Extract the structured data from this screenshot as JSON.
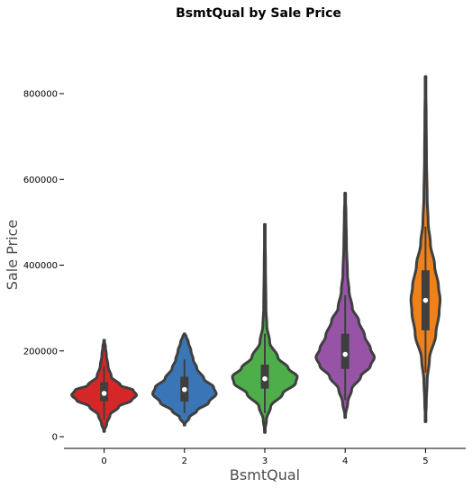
{
  "chart_data": {
    "type": "violin",
    "title": "BsmtQual by Sale Price",
    "xlabel": "BsmtQual",
    "ylabel": "Sale Price",
    "categories": [
      "0",
      "2",
      "3",
      "4",
      "5"
    ],
    "ylim": [
      -30000,
      880000
    ],
    "yticks": [
      0,
      200000,
      400000,
      600000,
      800000
    ],
    "ytick_labels": [
      "0",
      "200000",
      "400000",
      "600000",
      "800000"
    ],
    "grid": false,
    "colors": [
      "#d62728",
      "#3a76b5",
      "#4eaf4a",
      "#9753a6",
      "#f0811a"
    ],
    "series": [
      {
        "category": "0",
        "min": 12000,
        "max": 225000,
        "q1": 83000,
        "median": 101000,
        "q3": 127000,
        "whisker_low": 40000,
        "whisker_high": 165000,
        "profile": [
          [
            12000,
            0
          ],
          [
            30000,
            0.08
          ],
          [
            50000,
            0.18
          ],
          [
            70000,
            0.45
          ],
          [
            85000,
            0.85
          ],
          [
            97000,
            1.0
          ],
          [
            108000,
            0.9
          ],
          [
            120000,
            0.5
          ],
          [
            140000,
            0.22
          ],
          [
            165000,
            0.12
          ],
          [
            190000,
            0.07
          ],
          [
            210000,
            0.04
          ],
          [
            225000,
            0
          ]
        ]
      },
      {
        "category": "2",
        "min": 27000,
        "max": 240000,
        "q1": 82000,
        "median": 110000,
        "q3": 140000,
        "whisker_low": 55000,
        "whisker_high": 180000,
        "profile": [
          [
            27000,
            0
          ],
          [
            45000,
            0.15
          ],
          [
            60000,
            0.38
          ],
          [
            80000,
            0.75
          ],
          [
            100000,
            0.98
          ],
          [
            115000,
            0.9
          ],
          [
            135000,
            0.6
          ],
          [
            160000,
            0.38
          ],
          [
            180000,
            0.27
          ],
          [
            200000,
            0.2
          ],
          [
            220000,
            0.12
          ],
          [
            235000,
            0.05
          ],
          [
            240000,
            0
          ]
        ]
      },
      {
        "category": "3",
        "min": 10000,
        "max": 495000,
        "q1": 112000,
        "median": 135000,
        "q3": 168000,
        "whisker_low": 55000,
        "whisker_high": 240000,
        "profile": [
          [
            10000,
            0
          ],
          [
            40000,
            0.05
          ],
          [
            70000,
            0.18
          ],
          [
            100000,
            0.55
          ],
          [
            125000,
            0.95
          ],
          [
            140000,
            1.0
          ],
          [
            160000,
            0.72
          ],
          [
            185000,
            0.4
          ],
          [
            220000,
            0.15
          ],
          [
            260000,
            0.06
          ],
          [
            300000,
            0.035
          ],
          [
            400000,
            0.02
          ],
          [
            495000,
            0
          ]
        ]
      },
      {
        "category": "4",
        "min": 45000,
        "max": 568000,
        "q1": 158000,
        "median": 192000,
        "q3": 240000,
        "whisker_low": 85000,
        "whisker_high": 330000,
        "profile": [
          [
            45000,
            0
          ],
          [
            80000,
            0.08
          ],
          [
            110000,
            0.2
          ],
          [
            140000,
            0.48
          ],
          [
            165000,
            0.78
          ],
          [
            185000,
            0.9
          ],
          [
            205000,
            0.78
          ],
          [
            235000,
            0.6
          ],
          [
            270000,
            0.42
          ],
          [
            300000,
            0.22
          ],
          [
            340000,
            0.12
          ],
          [
            380000,
            0.07
          ],
          [
            450000,
            0.04
          ],
          [
            520000,
            0.025
          ],
          [
            568000,
            0
          ]
        ]
      },
      {
        "category": "5",
        "min": 35000,
        "max": 840000,
        "q1": 248000,
        "median": 318000,
        "q3": 388000,
        "whisker_low": 150000,
        "whisker_high": 490000,
        "profile": [
          [
            35000,
            0
          ],
          [
            80000,
            0.025
          ],
          [
            130000,
            0.05
          ],
          [
            180000,
            0.12
          ],
          [
            240000,
            0.32
          ],
          [
            290000,
            0.42
          ],
          [
            320000,
            0.45
          ],
          [
            350000,
            0.4
          ],
          [
            400000,
            0.28
          ],
          [
            450000,
            0.15
          ],
          [
            500000,
            0.08
          ],
          [
            560000,
            0.05
          ],
          [
            650000,
            0.03
          ],
          [
            750000,
            0.02
          ],
          [
            840000,
            0
          ]
        ]
      }
    ]
  }
}
